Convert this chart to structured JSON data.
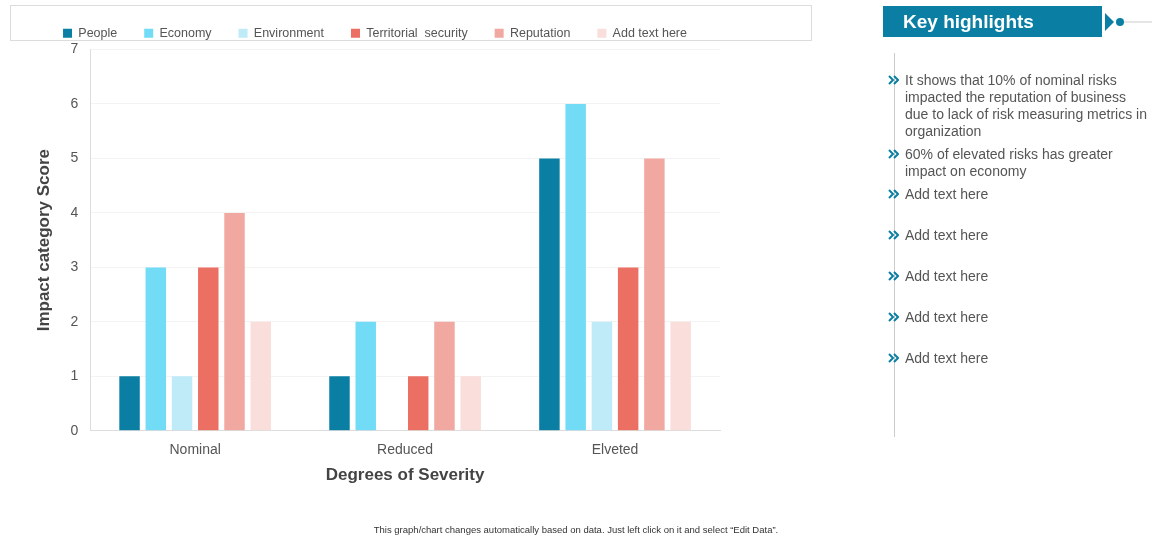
{
  "chart_data": [
    {
      "type": "bar",
      "xlabel": "Degrees of Severity",
      "ylabel": "Impact category Score",
      "categories": [
        "Nominal",
        "Reduced",
        "Elveted"
      ],
      "series": [
        {
          "name": "People",
          "color": "#0b7fa3",
          "values": [
            1,
            1,
            5
          ]
        },
        {
          "name": "Economy",
          "color": "#72dcf7",
          "values": [
            3,
            2,
            6
          ]
        },
        {
          "name": "Environment",
          "color": "#bfeaf7",
          "values": [
            1,
            0,
            2
          ]
        },
        {
          "name": "Territorial  security",
          "color": "#ec6f63",
          "values": [
            3,
            1,
            3
          ]
        },
        {
          "name": "Reputation",
          "color": "#f1a8a1",
          "values": [
            4,
            2,
            5
          ]
        },
        {
          "name": "Add text here",
          "color": "#f9dedc",
          "values": [
            2,
            1,
            2
          ]
        }
      ],
      "ylim": [
        0,
        7
      ],
      "yticks": [
        0,
        1,
        2,
        3,
        4,
        5,
        6,
        7
      ],
      "grid": "y",
      "legend": "top",
      "annotations": [
        "This graph/chart changes automatically based on data. Just left click on it and select “Edit Data”."
      ]
    },
    {
      "type": "other",
      "title": "Key highlights",
      "annotations": [
        "It shows that 10% of nominal risks impacted the reputation of business due to lack of risk measuring metrics in organization",
        "60% of elevated risks has greater impact on economy",
        "Add text here",
        "Add text here",
        "Add text here",
        "Add text here",
        "Add text here"
      ]
    }
  ]
}
